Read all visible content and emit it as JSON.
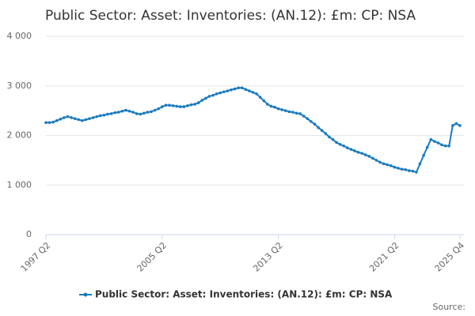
{
  "chart_data": {
    "type": "line",
    "title": "Public Sector: Asset: Inventories: (AN.12): £m: CP: NSA",
    "source": "Source:",
    "categories": [
      "1997 Q2",
      null,
      null,
      null,
      null,
      null,
      null,
      null,
      null,
      null,
      null,
      null,
      null,
      null,
      null,
      null,
      null,
      null,
      null,
      null,
      null,
      null,
      null,
      null,
      null,
      null,
      null,
      null,
      null,
      null,
      null,
      null,
      "2005 Q2",
      null,
      null,
      null,
      null,
      null,
      null,
      null,
      null,
      null,
      null,
      null,
      null,
      null,
      null,
      null,
      null,
      null,
      null,
      null,
      null,
      null,
      null,
      null,
      null,
      null,
      null,
      null,
      null,
      null,
      null,
      null,
      "2013 Q2",
      null,
      null,
      null,
      null,
      null,
      null,
      null,
      null,
      null,
      null,
      null,
      null,
      null,
      null,
      null,
      null,
      null,
      null,
      null,
      null,
      null,
      null,
      null,
      null,
      null,
      null,
      null,
      null,
      null,
      null,
      null,
      "2021 Q2",
      null,
      null,
      null,
      null,
      null,
      null,
      null,
      null,
      null,
      null,
      null,
      null,
      null,
      null,
      null,
      null,
      null,
      "2025 Q4"
    ],
    "series": [
      {
        "name": "Public Sector: Asset: Inventories: (AN.12): £m: CP: NSA",
        "color": "#1a7bbf",
        "values": [
          2260,
          2260,
          2270,
          2300,
          2330,
          2360,
          2380,
          2360,
          2340,
          2320,
          2300,
          2320,
          2340,
          2360,
          2380,
          2400,
          2410,
          2430,
          2440,
          2460,
          2470,
          2490,
          2510,
          2490,
          2470,
          2440,
          2430,
          2450,
          2470,
          2480,
          2510,
          2540,
          2580,
          2610,
          2610,
          2600,
          2590,
          2580,
          2580,
          2600,
          2620,
          2630,
          2660,
          2710,
          2750,
          2790,
          2810,
          2840,
          2860,
          2880,
          2900,
          2920,
          2940,
          2960,
          2960,
          2930,
          2900,
          2870,
          2840,
          2770,
          2700,
          2630,
          2590,
          2570,
          2540,
          2520,
          2500,
          2480,
          2470,
          2450,
          2440,
          2390,
          2340,
          2280,
          2230,
          2160,
          2100,
          2040,
          1970,
          1920,
          1860,
          1820,
          1790,
          1750,
          1720,
          1690,
          1660,
          1640,
          1610,
          1580,
          1540,
          1500,
          1460,
          1430,
          1410,
          1390,
          1360,
          1340,
          1320,
          1310,
          1290,
          1280,
          1260,
          1430,
          1600,
          1760,
          1920,
          1880,
          1850,
          1810,
          1790,
          1790,
          2200,
          2240,
          2200
        ]
      }
    ],
    "ylim": [
      0,
      4000
    ],
    "yticks": [
      0,
      {
        "value": 1000,
        "label": "1 000"
      },
      {
        "value": 2000,
        "label": "2 000"
      },
      {
        "value": 3000,
        "label": "3 000"
      },
      {
        "value": 4000,
        "label": "4 000"
      }
    ],
    "grid": true,
    "legend": "bottom"
  }
}
